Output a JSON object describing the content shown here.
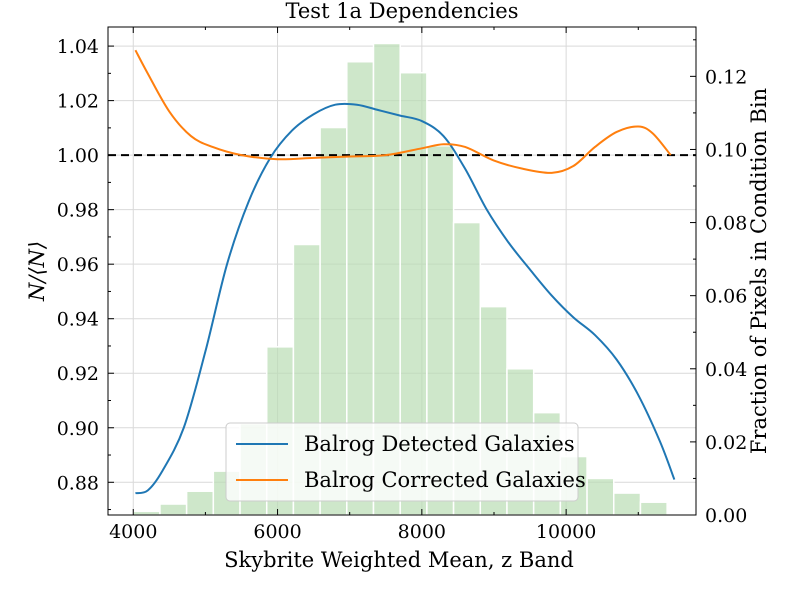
{
  "chart_data": {
    "type": "line",
    "title": "Test 1a Dependencies",
    "xlabel": "Skybrite Weighted Mean, z Band",
    "ylabel": "N/⟨N⟩",
    "ylabel_right": "Fraction of Pixels in Condition Bin",
    "xlim": [
      3650,
      11800
    ],
    "ylim": [
      0.868,
      1.047
    ],
    "ylim_right": [
      0.0,
      0.1335
    ],
    "x_ticks": [
      4000,
      6000,
      8000,
      10000
    ],
    "y_ticks": [
      0.88,
      0.9,
      0.92,
      0.94,
      0.96,
      0.98,
      1.0,
      1.02,
      1.04
    ],
    "y_ticks_right": [
      0.0,
      0.02,
      0.04,
      0.06,
      0.08,
      0.1,
      0.12
    ],
    "reference_line": 1.0,
    "grid": true,
    "legend_position": "lower-center",
    "colors": {
      "detected": "#1f77b4",
      "corrected": "#ff7f0e",
      "histogram": "#b9ddb4",
      "reference": "#000000",
      "grid": "#d9d9d9"
    },
    "series": [
      {
        "name": "Balrog Detected Galaxies",
        "color": "#1f77b4",
        "x": [
          4030,
          4200,
          4400,
          4700,
          5000,
          5300,
          5600,
          5900,
          6200,
          6500,
          6800,
          7100,
          7400,
          7700,
          8000,
          8300,
          8600,
          8900,
          9200,
          9500,
          9800,
          10100,
          10400,
          10700,
          11000,
          11300,
          11500
        ],
        "values": [
          0.876,
          0.877,
          0.884,
          0.9,
          0.928,
          0.96,
          0.983,
          0.999,
          1.009,
          1.015,
          1.0185,
          1.0185,
          1.0165,
          1.0145,
          1.0125,
          1.007,
          0.995,
          0.98,
          0.968,
          0.958,
          0.9485,
          0.9405,
          0.934,
          0.925,
          0.912,
          0.895,
          0.881
        ]
      },
      {
        "name": "Balrog Corrected Galaxies",
        "color": "#ff7f0e",
        "x": [
          4030,
          4200,
          4500,
          4800,
          5100,
          5500,
          6000,
          6500,
          7000,
          7500,
          8000,
          8300,
          8600,
          9000,
          9400,
          9800,
          10100,
          10400,
          10700,
          11000,
          11200,
          11450
        ],
        "values": [
          1.0385,
          1.03,
          1.016,
          1.007,
          1.003,
          1.0,
          0.9985,
          0.999,
          0.9995,
          1.0,
          1.0025,
          1.004,
          1.003,
          0.998,
          0.995,
          0.9935,
          0.996,
          1.003,
          1.0085,
          1.0105,
          1.008,
          1.0
        ]
      }
    ],
    "histogram": {
      "name": "Fraction of Pixels in Condition Bin",
      "axis": "right",
      "bin_edges": [
        4000,
        4370,
        4740,
        5110,
        5480,
        5850,
        6220,
        6590,
        6960,
        7330,
        7700,
        8070,
        8440,
        8810,
        9180,
        9550,
        9920,
        10290,
        10660,
        11030,
        11400
      ],
      "values": [
        0.001,
        0.003,
        0.0065,
        0.012,
        0.025,
        0.046,
        0.074,
        0.106,
        0.124,
        0.129,
        0.121,
        0.101,
        0.08,
        0.057,
        0.04,
        0.028,
        0.016,
        0.01,
        0.006,
        0.0035
      ]
    }
  }
}
